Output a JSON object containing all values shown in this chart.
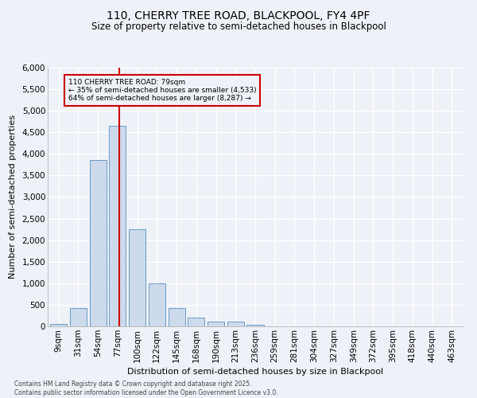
{
  "title1": "110, CHERRY TREE ROAD, BLACKPOOL, FY4 4PF",
  "title2": "Size of property relative to semi-detached houses in Blackpool",
  "xlabel": "Distribution of semi-detached houses by size in Blackpool",
  "ylabel": "Number of semi-detached properties",
  "categories": [
    "9sqm",
    "31sqm",
    "54sqm",
    "77sqm",
    "100sqm",
    "122sqm",
    "145sqm",
    "168sqm",
    "190sqm",
    "213sqm",
    "236sqm",
    "259sqm",
    "281sqm",
    "304sqm",
    "327sqm",
    "349sqm",
    "372sqm",
    "395sqm",
    "418sqm",
    "440sqm",
    "463sqm"
  ],
  "values": [
    50,
    430,
    3850,
    4650,
    2250,
    990,
    420,
    200,
    110,
    105,
    40,
    5,
    0,
    0,
    0,
    0,
    0,
    0,
    0,
    0,
    0
  ],
  "bar_color": "#cddaeb",
  "bar_edge_color": "#6b9bc5",
  "vline_x": 3.1,
  "vline_color": "#cc0000",
  "annotation_text": "110 CHERRY TREE ROAD: 79sqm\n← 35% of semi-detached houses are smaller (4,533)\n64% of semi-detached houses are larger (8,287) →",
  "box_color": "#cc0000",
  "ylim": [
    0,
    6000
  ],
  "yticks": [
    0,
    500,
    1000,
    1500,
    2000,
    2500,
    3000,
    3500,
    4000,
    4500,
    5000,
    5500,
    6000
  ],
  "footnote": "Contains HM Land Registry data © Crown copyright and database right 2025.\nContains public sector information licensed under the Open Government Licence v3.0.",
  "bg_color": "#eef2f8",
  "grid_color": "#ffffff",
  "title_fontsize": 10,
  "subtitle_fontsize": 8.5,
  "axis_label_fontsize": 8,
  "tick_fontsize": 7.5,
  "footnote_fontsize": 5.5
}
